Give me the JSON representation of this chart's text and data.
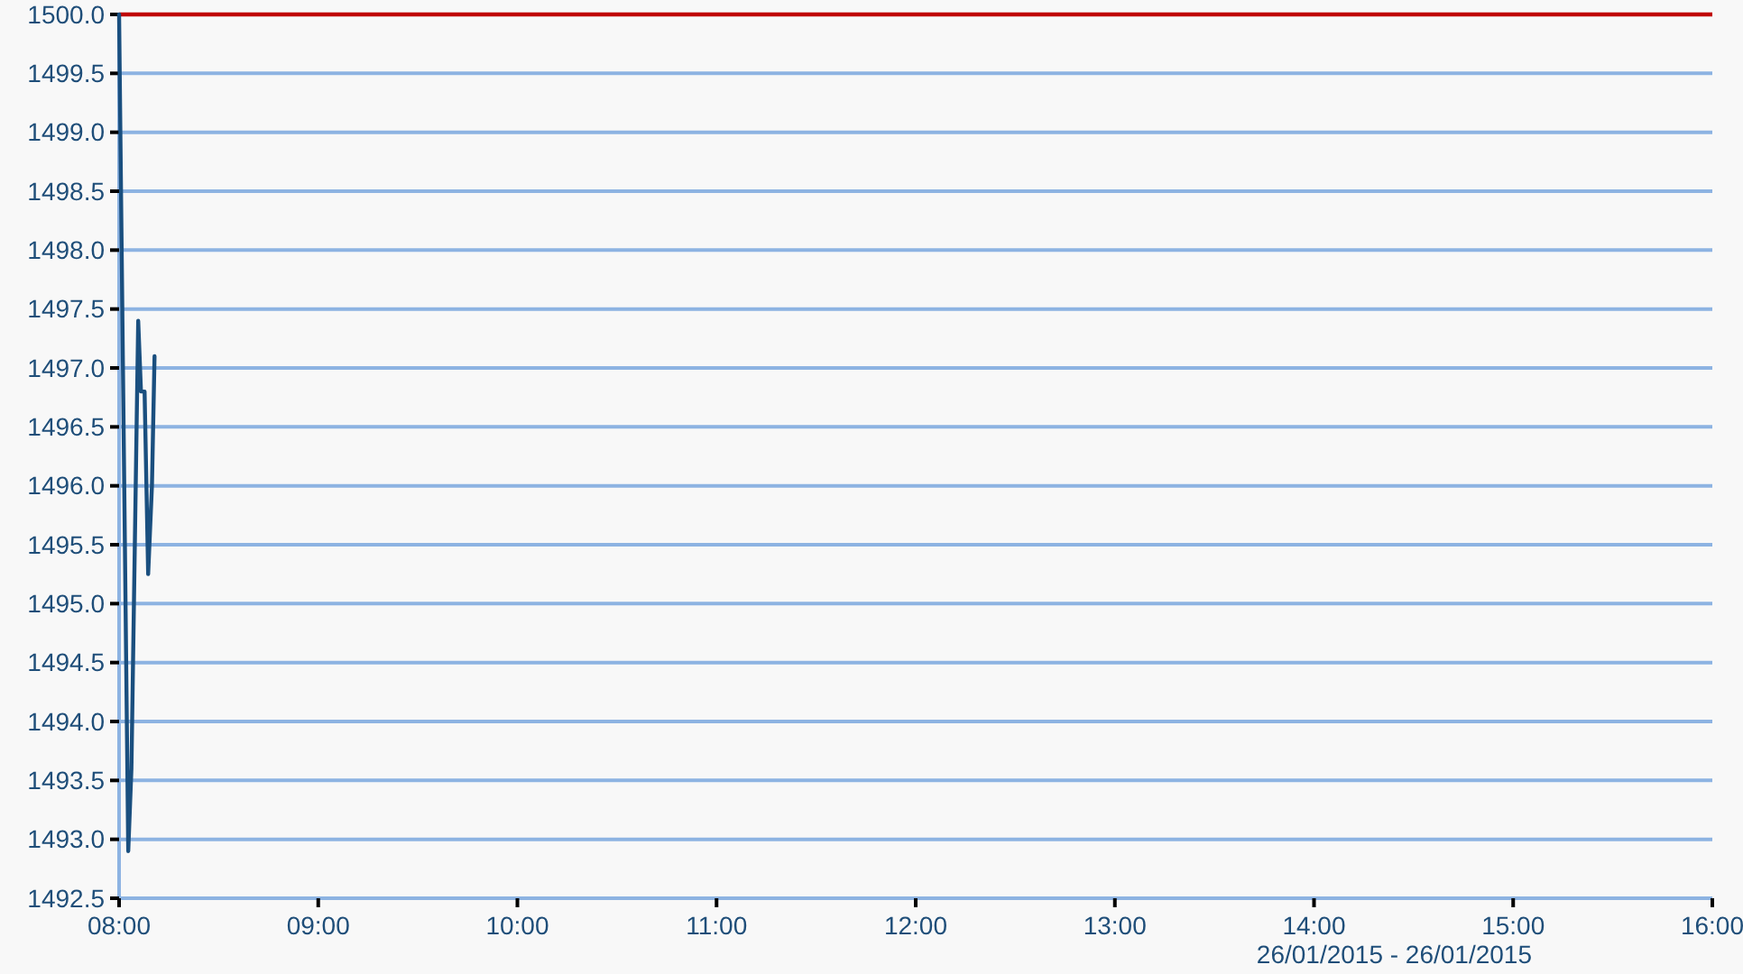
{
  "chart_data": {
    "type": "line",
    "x": [
      8.0,
      8.046,
      8.062,
      8.096,
      8.11,
      8.128,
      8.146,
      8.165,
      8.178
    ],
    "series": [
      {
        "color": "#1a4f7f",
        "values": [
          1500.0,
          1492.9,
          1493.6,
          1497.4,
          1496.8,
          1496.8,
          1495.25,
          1496.0,
          1497.1
        ]
      }
    ],
    "xlim": [
      8,
      16
    ],
    "xticks": [
      {
        "value": 8,
        "label": "08:00"
      },
      {
        "value": 9,
        "label": "09:00"
      },
      {
        "value": 10,
        "label": "10:00"
      },
      {
        "value": 11,
        "label": "11:00"
      },
      {
        "value": 12,
        "label": "12:00"
      },
      {
        "value": 13,
        "label": "13:00"
      },
      {
        "value": 14,
        "label": "14:00"
      },
      {
        "value": 15,
        "label": "15:00"
      },
      {
        "value": 16,
        "label": "16:00"
      }
    ],
    "ylim": [
      1492.5,
      1500
    ],
    "yticks": [
      {
        "value": 1492.5,
        "label": "1492.5"
      },
      {
        "value": 1493,
        "label": "1493.0"
      },
      {
        "value": 1493.5,
        "label": "1493.5"
      },
      {
        "value": 1494,
        "label": "1494.0"
      },
      {
        "value": 1494.5,
        "label": "1494.5"
      },
      {
        "value": 1495,
        "label": "1495.0"
      },
      {
        "value": 1495.5,
        "label": "1495.5"
      },
      {
        "value": 1496,
        "label": "1496.0"
      },
      {
        "value": 1496.5,
        "label": "1496.5"
      },
      {
        "value": 1497,
        "label": "1497.0"
      },
      {
        "value": 1497.5,
        "label": "1497.5"
      },
      {
        "value": 1498,
        "label": "1498.0"
      },
      {
        "value": 1498.5,
        "label": "1498.5"
      },
      {
        "value": 1499,
        "label": "1499.0"
      },
      {
        "value": 1499.5,
        "label": "1499.5"
      },
      {
        "value": 1500,
        "label": "1500.0"
      }
    ],
    "grid": "y",
    "ref_lines": [
      {
        "axis": "y",
        "value": 1500,
        "color": "#c00000"
      }
    ],
    "annotations": [
      "26/01/2015 - 26/01/2015"
    ]
  }
}
